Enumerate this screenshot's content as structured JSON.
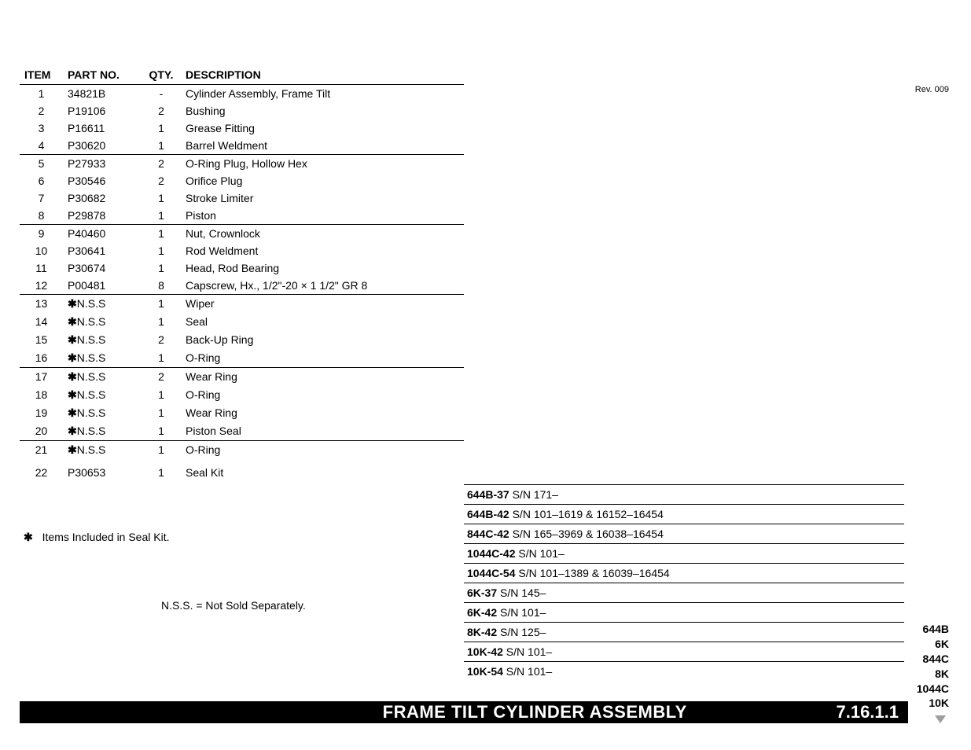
{
  "revision": "Rev. 009",
  "headers": {
    "item": "ITEM",
    "part": "PART NO.",
    "qty": "QTY.",
    "desc": "DESCRIPTION"
  },
  "rows": [
    {
      "item": "1",
      "part": "34821B",
      "star": false,
      "qty": "-",
      "desc": "Cylinder Assembly, Frame Tilt",
      "group_end": false
    },
    {
      "item": "2",
      "part": "P19106",
      "star": false,
      "qty": "2",
      "desc": "Bushing",
      "group_end": false
    },
    {
      "item": "3",
      "part": "P16611",
      "star": false,
      "qty": "1",
      "desc": "Grease Fitting",
      "group_end": false
    },
    {
      "item": "4",
      "part": "P30620",
      "star": false,
      "qty": "1",
      "desc": "Barrel Weldment",
      "group_end": true
    },
    {
      "item": "5",
      "part": "P27933",
      "star": false,
      "qty": "2",
      "desc": "O-Ring Plug, Hollow Hex",
      "group_end": false
    },
    {
      "item": "6",
      "part": "P30546",
      "star": false,
      "qty": "2",
      "desc": "Orifice Plug",
      "group_end": false
    },
    {
      "item": "7",
      "part": "P30682",
      "star": false,
      "qty": "1",
      "desc": "Stroke Limiter",
      "group_end": false
    },
    {
      "item": "8",
      "part": "P29878",
      "star": false,
      "qty": "1",
      "desc": "Piston",
      "group_end": true
    },
    {
      "item": "9",
      "part": "P40460",
      "star": false,
      "qty": "1",
      "desc": "Nut, Crownlock",
      "group_end": false
    },
    {
      "item": "10",
      "part": "P30641",
      "star": false,
      "qty": "1",
      "desc": "Rod Weldment",
      "group_end": false
    },
    {
      "item": "11",
      "part": "P30674",
      "star": false,
      "qty": "1",
      "desc": "Head, Rod Bearing",
      "group_end": false
    },
    {
      "item": "12",
      "part": "P00481",
      "star": false,
      "qty": "8",
      "desc": "Capscrew, Hx., 1/2\"-20 × 1 1/2\"   GR 8",
      "group_end": true
    },
    {
      "item": "13",
      "part": "N.S.S",
      "star": true,
      "qty": "1",
      "desc": "Wiper",
      "group_end": false
    },
    {
      "item": "14",
      "part": "N.S.S",
      "star": true,
      "qty": "1",
      "desc": "Seal",
      "group_end": false
    },
    {
      "item": "15",
      "part": "N.S.S",
      "star": true,
      "qty": "2",
      "desc": "Back-Up Ring",
      "group_end": false
    },
    {
      "item": "16",
      "part": "N.S.S",
      "star": true,
      "qty": "1",
      "desc": "O-Ring",
      "group_end": true
    },
    {
      "item": "17",
      "part": "N.S.S",
      "star": true,
      "qty": "2",
      "desc": "Wear Ring",
      "group_end": false
    },
    {
      "item": "18",
      "part": "N.S.S",
      "star": true,
      "qty": "1",
      "desc": "O-Ring",
      "group_end": false
    },
    {
      "item": "19",
      "part": "N.S.S",
      "star": true,
      "qty": "1",
      "desc": "Wear Ring",
      "group_end": false
    },
    {
      "item": "20",
      "part": "N.S.S",
      "star": true,
      "qty": "1",
      "desc": "Piston Seal",
      "group_end": true
    },
    {
      "item": "21",
      "part": "N.S.S",
      "star": true,
      "qty": "1",
      "desc": "O-Ring",
      "group_end": false
    },
    {
      "item": "",
      "part": "",
      "star": false,
      "qty": "",
      "desc": "",
      "group_end": false
    },
    {
      "item": "22",
      "part": "P30653",
      "star": false,
      "qty": "1",
      "desc": "Seal Kit",
      "group_end": false
    }
  ],
  "note1_star": "✱",
  "note1": "Items Included in Seal Kit.",
  "note2": "N.S.S. = Not Sold Separately.",
  "serials": [
    {
      "model": "644B-37",
      "sn": " S/N 171–"
    },
    {
      "model": "644B-42",
      "sn": " S/N 101–1619 & 16152–16454"
    },
    {
      "model": "844C-42",
      "sn": " S/N 165–3969 & 16038–16454"
    },
    {
      "model": "1044C-42",
      "sn": " S/N 101–"
    },
    {
      "model": "1044C-54",
      "sn": " S/N 101–1389 & 16039–16454"
    },
    {
      "model": "6K-37",
      "sn": " S/N 145–"
    },
    {
      "model": "6K-42",
      "sn": " S/N 101–"
    },
    {
      "model": "8K-42",
      "sn": " S/N 125–"
    },
    {
      "model": "10K-42",
      "sn": " S/N 101–"
    },
    {
      "model": "10K-54",
      "sn": " S/N 101–"
    }
  ],
  "bar": {
    "title": "FRAME TILT CYLINDER ASSEMBLY",
    "section": "7.16.1.1"
  },
  "models": [
    "644B",
    "6K",
    "844C",
    "8K",
    "1044C",
    "10K"
  ]
}
